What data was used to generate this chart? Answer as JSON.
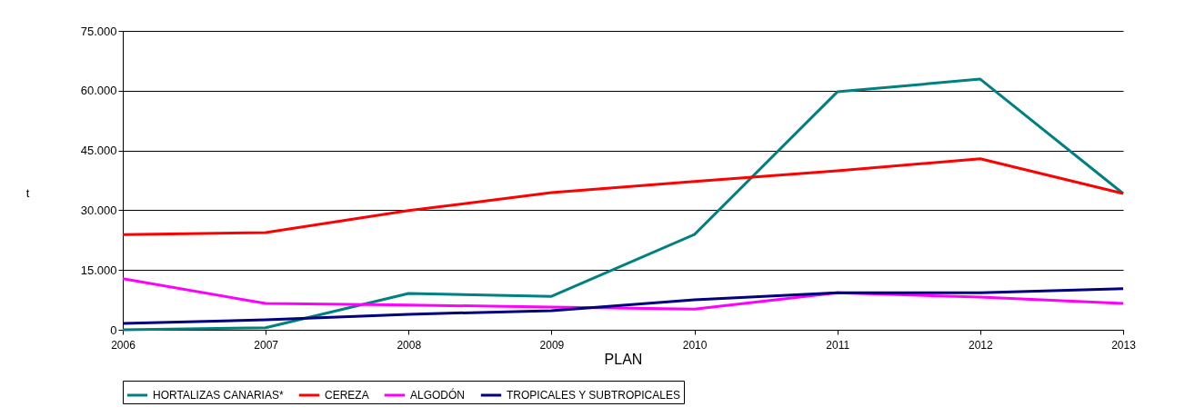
{
  "chart_data": {
    "type": "line",
    "xlabel": "PLAN",
    "ylabel": "t",
    "x": [
      2006,
      2007,
      2008,
      2009,
      2010,
      2011,
      2012,
      2013
    ],
    "xlim": [
      2006,
      2013
    ],
    "xticks": [
      2006,
      2007,
      2008,
      2009,
      2010,
      2011,
      2012,
      2013
    ],
    "ylim": [
      0,
      75000
    ],
    "yticks": [
      {
        "value": 0,
        "label": "0"
      },
      {
        "value": 15000,
        "label": "15.000"
      },
      {
        "value": 30000,
        "label": "30.000"
      },
      {
        "value": 45000,
        "label": "45.000"
      },
      {
        "value": 60000,
        "label": "60.000"
      },
      {
        "value": 75000,
        "label": "75.000"
      }
    ],
    "grid": "y",
    "legend": "bottom",
    "marker": "none",
    "line_style": "solid",
    "series": [
      {
        "name": "HORTALIZAS CANARIAS*",
        "color": "#008080",
        "values": [
          0,
          500,
          9100,
          8400,
          23900,
          59700,
          62900,
          34200
        ]
      },
      {
        "name": "CEREZA",
        "color": "#ff0000",
        "values": [
          23900,
          24400,
          29900,
          34400,
          37200,
          39900,
          42900,
          34200
        ]
      },
      {
        "name": "ALGODÓN",
        "color": "#ff00ff",
        "values": [
          12800,
          6600,
          6200,
          5700,
          5200,
          9300,
          8200,
          6600
        ]
      },
      {
        "name": "TROPICALES Y SUBTROPICALES",
        "color": "#000080",
        "values": [
          1600,
          2500,
          3900,
          4800,
          7500,
          9300,
          9300,
          10300
        ]
      }
    ]
  }
}
